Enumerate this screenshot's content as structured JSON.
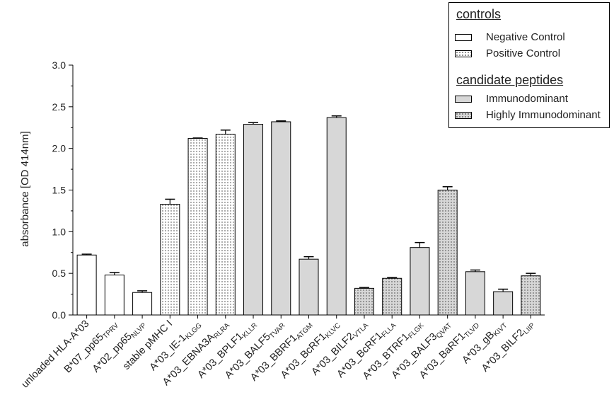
{
  "chart_data": {
    "type": "bar",
    "ylabel": "absorbance  [OD 414nm]",
    "ylim": [
      0,
      3.0
    ],
    "yticks": [
      "0.0",
      "0.5",
      "1.0",
      "1.5",
      "2.0",
      "2.5",
      "3.0"
    ],
    "categories": [
      {
        "base": "unloaded HLA-A*03",
        "sub": ""
      },
      {
        "base": "B*07_pp65",
        "sub": "TPRV"
      },
      {
        "base": "A*02_pp65",
        "sub": "NLVP"
      },
      {
        "base": "stable pMHC I",
        "sub": ""
      },
      {
        "base": "A*03_IE-1",
        "sub": "KLGG"
      },
      {
        "base": "A*03_EBNA3A",
        "sub": "RLRA"
      },
      {
        "base": "A*03_BPLF1",
        "sub": "KLLR"
      },
      {
        "base": "A*03_BALF5",
        "sub": "TVAR"
      },
      {
        "base": "A*03_BBRF1",
        "sub": "ATGM"
      },
      {
        "base": "A*03_BcRF1",
        "sub": "KLVC"
      },
      {
        "base": "A*03_BILF2",
        "sub": "VTLA"
      },
      {
        "base": "A*03_BcRF1",
        "sub": "FLLA"
      },
      {
        "base": "A*03_BTRF1",
        "sub": "FLGK"
      },
      {
        "base": "A*03_BALF3",
        "sub": "QVAT"
      },
      {
        "base": "A*03_BaRF1",
        "sub": "TLVD"
      },
      {
        "base": "A*03_gB",
        "sub": "KIVT"
      },
      {
        "base": "A*03_BILF2",
        "sub": "LIIP"
      }
    ],
    "values": [
      0.72,
      0.48,
      0.27,
      1.33,
      2.12,
      2.17,
      2.29,
      2.32,
      0.67,
      2.37,
      0.32,
      0.44,
      0.81,
      1.5,
      0.52,
      0.28,
      0.47
    ],
    "errors": [
      0.01,
      0.03,
      0.02,
      0.06,
      0.005,
      0.05,
      0.02,
      0.01,
      0.03,
      0.02,
      0.01,
      0.01,
      0.06,
      0.04,
      0.02,
      0.03,
      0.03
    ],
    "groups": [
      "negative",
      "negative",
      "negative",
      "positive",
      "positive",
      "positive",
      "immuno",
      "immuno",
      "immuno",
      "immuno",
      "highly",
      "highly",
      "immuno",
      "highly",
      "immuno",
      "immuno",
      "highly"
    ],
    "group_styles": {
      "negative": {
        "fill": "#ffffff",
        "dots": false
      },
      "positive": {
        "fill": "#ffffff",
        "dots": true
      },
      "immuno": {
        "fill": "#d7d7d7",
        "dots": false
      },
      "highly": {
        "fill": "#d7d7d7",
        "dots": true
      }
    },
    "legend": {
      "position": "top-right",
      "controls_title": "controls",
      "negative_label": "Negative Control",
      "positive_label": "Positive Control",
      "candidates_title": "candidate peptides",
      "immuno_label": "Immunodominant",
      "highly_label": "Highly Immunodominant"
    }
  }
}
